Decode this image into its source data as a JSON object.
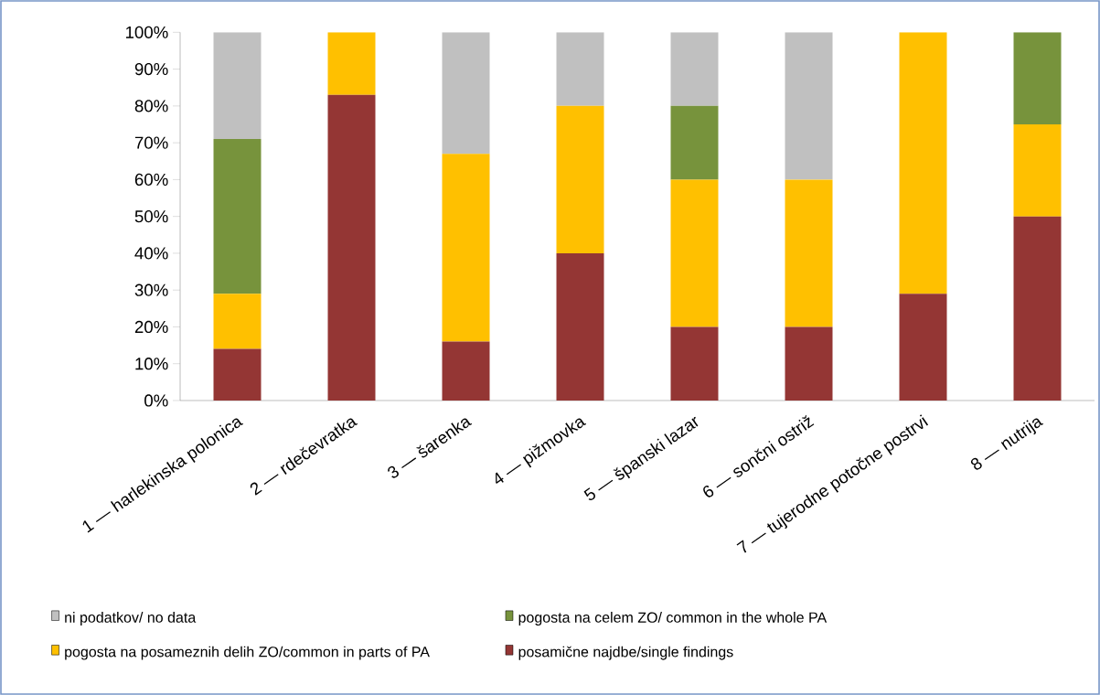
{
  "chart_data": {
    "type": "bar",
    "stacked": true,
    "categories": [
      "1 — harlekinska polonica",
      "2 — rdečevratka",
      "3 — šarenka",
      "4 — pižmovka",
      "5 — španski lazar",
      "6 — sončni ostriž",
      "7 — tujerodne potočne postrvi",
      "8 — nutrija"
    ],
    "series": [
      {
        "name": "posamične najdbe/single findings",
        "color": "#943634",
        "values": [
          14,
          83,
          16,
          40,
          20,
          20,
          29,
          50
        ]
      },
      {
        "name": "pogosta na posameznih delih ZO/common in parts of PA",
        "color": "#ffc000",
        "values": [
          15,
          17,
          51,
          40,
          40,
          40,
          71,
          25
        ]
      },
      {
        "name": "pogosta na celem ZO/ common in the whole PA",
        "color": "#77933c",
        "values": [
          42,
          0,
          0,
          0,
          20,
          0,
          0,
          25
        ]
      },
      {
        "name": "ni podatkov/ no data",
        "color": "#c0c0c0",
        "values": [
          29,
          0,
          33,
          20,
          20,
          40,
          0,
          0
        ]
      }
    ],
    "ylim": [
      0,
      100
    ],
    "yticks": [
      {
        "value": 0,
        "label": "0%"
      },
      {
        "value": 10,
        "label": "10%"
      },
      {
        "value": 20,
        "label": "20%"
      },
      {
        "value": 30,
        "label": "30%"
      },
      {
        "value": 40,
        "label": "40%"
      },
      {
        "value": 50,
        "label": "50%"
      },
      {
        "value": 60,
        "label": "60%"
      },
      {
        "value": 70,
        "label": "70%"
      },
      {
        "value": 80,
        "label": "80%"
      },
      {
        "value": 90,
        "label": "90%"
      },
      {
        "value": 100,
        "label": "100%"
      }
    ],
    "grid": false,
    "legend": "bottom"
  }
}
